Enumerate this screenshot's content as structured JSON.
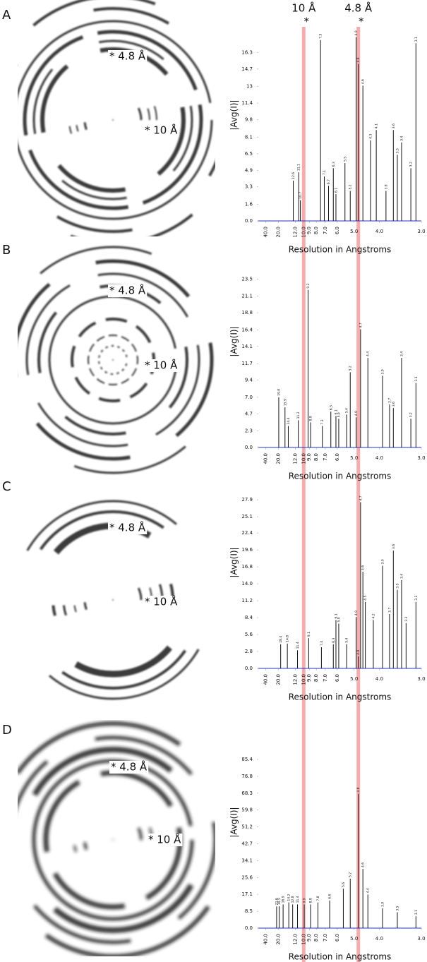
{
  "reference_lines": [
    {
      "value": 10,
      "label": "10 Å"
    },
    {
      "value": 4.8,
      "label": "4.8 Å"
    }
  ],
  "reference_mark": "*",
  "reference_color": "#f4a3a3",
  "panels": [
    {
      "letter": "A",
      "ring_labels": [
        "* 4.8 Å",
        "* 10 Å"
      ]
    },
    {
      "letter": "B",
      "ring_labels": [
        "* 4.8 Å",
        "* 10 Å"
      ]
    },
    {
      "letter": "C",
      "ring_labels": [
        "* 4.8 Å",
        "* 10 Å"
      ]
    },
    {
      "letter": "D",
      "ring_labels": [
        "* 4.8 Å",
        "* 10 Å"
      ]
    }
  ],
  "chart_data": [
    {
      "type": "bar",
      "ylabel": "|Avg(I)|",
      "xlabel": "Resolution in Angstroms",
      "xscale": "reciprocal",
      "axis_color": "#2233cc",
      "xlim": [
        100,
        3
      ],
      "xticks": [
        {
          "value": 40,
          "label": "40.0"
        },
        {
          "value": 20,
          "label": "20.0"
        },
        {
          "value": 12,
          "label": "12.0"
        },
        {
          "value": 10,
          "label": "10.0"
        },
        {
          "value": 9,
          "label": "9.0"
        },
        {
          "value": 8,
          "label": "8.0"
        },
        {
          "value": 7,
          "label": "7.0"
        },
        {
          "value": 6,
          "label": "6.0"
        },
        {
          "value": 5,
          "label": "5.0"
        },
        {
          "value": 4,
          "label": "4.0"
        },
        {
          "value": 3,
          "label": "3.0"
        }
      ],
      "ylim": [
        0,
        17.9
      ],
      "yticks": [
        {
          "value": 0,
          "label": "0.0"
        },
        1.6,
        3.3,
        4.9,
        6.5,
        8.1,
        9.8,
        11.4,
        13.0,
        14.7,
        16.3
      ],
      "series": [
        {
          "color": "#111111",
          "x": [
            10.7,
            11.1,
            12.6,
            7.5,
            7.1,
            6.7,
            6.3,
            6.1,
            5.5,
            5.2,
            4.9,
            4.8,
            4.6,
            4.3,
            4.1,
            3.8,
            3.6,
            3.5,
            3.4,
            3.2,
            3.1
          ],
          "values": [
            2.0,
            4.7,
            3.9,
            17.5,
            4.3,
            3.4,
            5.1,
            2.6,
            5.6,
            2.9,
            17.8,
            15.2,
            13.1,
            7.8,
            8.8,
            2.9,
            8.8,
            6.4,
            7.6,
            5.1,
            17.2
          ]
        }
      ]
    },
    {
      "type": "bar",
      "ylabel": "|Avg(I)|",
      "xlabel": "Resolution in Angstroms",
      "xscale": "reciprocal",
      "axis_color": "#2233cc",
      "xlim": [
        100,
        3
      ],
      "xticks": [
        {
          "value": 40,
          "label": "40.0"
        },
        {
          "value": 20,
          "label": "20.0"
        },
        {
          "value": 12,
          "label": "12.0"
        },
        {
          "value": 10,
          "label": "10.0"
        },
        {
          "value": 9,
          "label": "9.0"
        },
        {
          "value": 8,
          "label": "8.0"
        },
        {
          "value": 7,
          "label": "7.0"
        },
        {
          "value": 6,
          "label": "6.0"
        },
        {
          "value": 5,
          "label": "5.0"
        },
        {
          "value": 4,
          "label": "4.0"
        },
        {
          "value": 3,
          "label": "3.0"
        }
      ],
      "ylim": [
        0,
        25.8
      ],
      "yticks": [
        {
          "value": 0,
          "label": "0.0"
        },
        2.3,
        4.7,
        {
          "value": 7,
          "label": "7.0"
        },
        9.4,
        11.7,
        14.1,
        16.4,
        18.8,
        21.1,
        23.5
      ],
      "series": [
        {
          "color": "#111111",
          "x": [
            19.8,
            15.9,
            14.4,
            11.2,
            9.2,
            8.8,
            7.3,
            6.5,
            6.1,
            5.9,
            5.4,
            5.2,
            4.9,
            4.7,
            4.4,
            3.9,
            3.7,
            3.6,
            3.4,
            3.2,
            3.1
          ],
          "values": [
            7.0,
            5.6,
            3.0,
            3.8,
            22.0,
            3.5,
            3.0,
            5.0,
            4.4,
            4.0,
            4.6,
            10.5,
            4.2,
            16.5,
            12.5,
            10.0,
            6.0,
            5.5,
            12.5,
            4.0,
            9.0
          ]
        }
      ]
    },
    {
      "type": "bar",
      "ylabel": "|Avg(I)|",
      "xlabel": "Resolution in Angstroms",
      "xscale": "reciprocal",
      "axis_color": "#2233cc",
      "xlim": [
        100,
        3
      ],
      "xticks": [
        {
          "value": 40,
          "label": "40.0"
        },
        {
          "value": 20,
          "label": "20.0"
        },
        {
          "value": 12,
          "label": "12.0"
        },
        {
          "value": 10,
          "label": "10.0"
        },
        {
          "value": 9,
          "label": "9.0"
        },
        {
          "value": 8,
          "label": "8.0"
        },
        {
          "value": 7,
          "label": "7.0"
        },
        {
          "value": 6,
          "label": "6.0"
        },
        {
          "value": 5,
          "label": "5.0"
        },
        {
          "value": 4,
          "label": "4.0"
        },
        {
          "value": 3,
          "label": "3.0"
        }
      ],
      "ylim": [
        0,
        30.6
      ],
      "yticks": [
        {
          "value": 0,
          "label": "0.0"
        },
        2.8,
        5.6,
        8.4,
        11.2,
        {
          "value": 14,
          "label": "14.0"
        },
        16.8,
        19.6,
        22.4,
        25.1,
        27.9
      ],
      "series": [
        {
          "color": "#111111",
          "x": [
            18.4,
            14.8,
            11.4,
            9.1,
            7.4,
            6.3,
            6.1,
            5.9,
            5.4,
            4.9,
            4.8,
            4.7,
            4.6,
            4.5,
            4.2,
            3.9,
            3.7,
            3.6,
            3.5,
            3.4,
            3.3,
            3.1
          ],
          "values": [
            4.0,
            4.1,
            3.0,
            5.0,
            3.5,
            4.0,
            8.0,
            7.4,
            4.0,
            8.5,
            2.0,
            27.5,
            16.0,
            11.0,
            8.0,
            17.0,
            9.0,
            19.5,
            13.0,
            14.6,
            7.5,
            11.0
          ]
        }
      ]
    },
    {
      "type": "bar",
      "ylabel": "|Avg(I)|",
      "xlabel": "Resolution in Angstroms",
      "xscale": "reciprocal",
      "axis_color": "#2233cc",
      "xlim": [
        100,
        3
      ],
      "xticks": [
        {
          "value": 40,
          "label": "40.0"
        },
        {
          "value": 20,
          "label": "20.0"
        },
        {
          "value": 12,
          "label": "12.0"
        },
        {
          "value": 10,
          "label": "10.0"
        },
        {
          "value": 9,
          "label": "9.0"
        },
        {
          "value": 8,
          "label": "8.0"
        },
        {
          "value": 7,
          "label": "7.0"
        },
        {
          "value": 6,
          "label": "6.0"
        },
        {
          "value": 5,
          "label": "5.0"
        },
        {
          "value": 4,
          "label": "4.0"
        },
        {
          "value": 3,
          "label": "3.0"
        }
      ],
      "ylim": [
        0,
        93.6
      ],
      "yticks": [
        {
          "value": 0,
          "label": "0.0"
        },
        8.5,
        17.1,
        25.6,
        34.1,
        42.7,
        51.2,
        59.8,
        68.3,
        76.8,
        85.4
      ],
      "series": [
        {
          "color": "#111111",
          "x": [
            21.6,
            19.5,
            16.9,
            14.2,
            12.8,
            11.4,
            9.9,
            8.8,
            7.8,
            6.6,
            5.6,
            5.2,
            4.8,
            4.6,
            4.4,
            3.9,
            3.5,
            3.1
          ],
          "values": [
            11,
            11,
            12,
            13,
            12,
            12,
            12,
            12,
            13,
            14,
            20,
            25,
            68,
            30,
            17,
            10,
            8,
            6
          ]
        }
      ]
    }
  ]
}
